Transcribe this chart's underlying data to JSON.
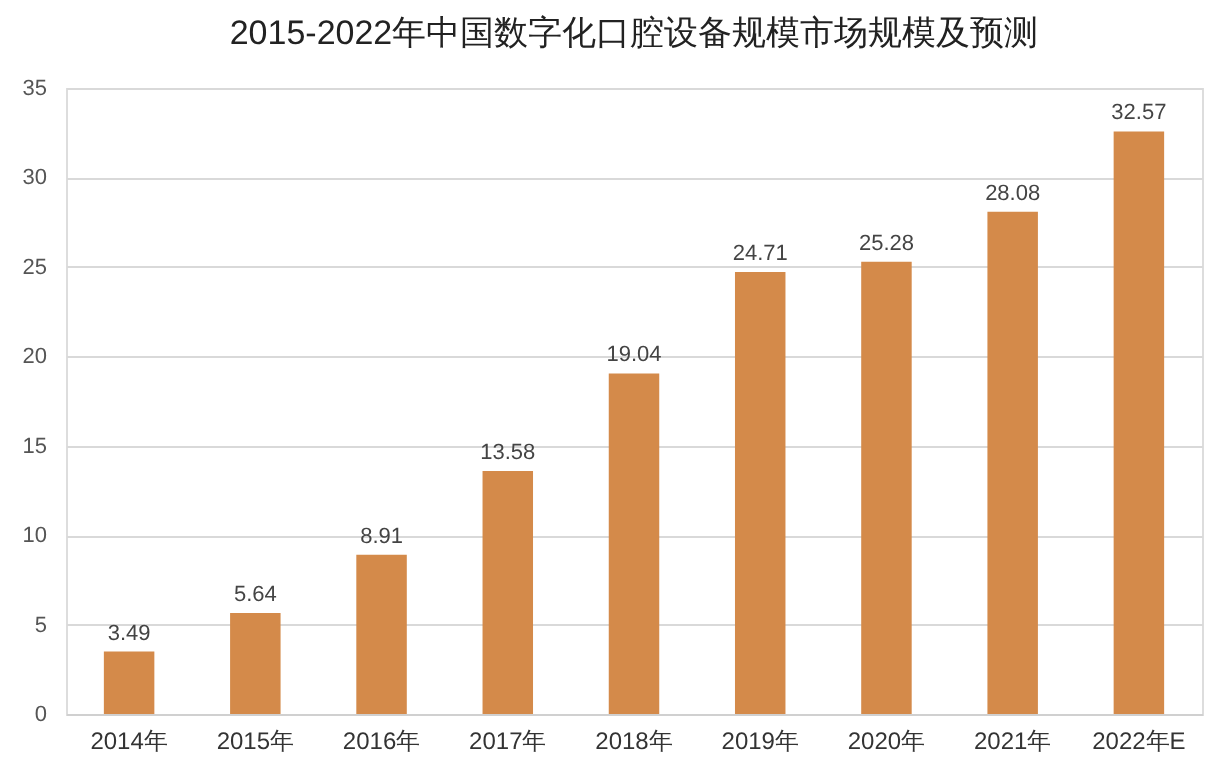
{
  "chart_data": {
    "type": "bar",
    "title": "2015-2022年中国数字化口腔设备规模市场规模及预测",
    "categories": [
      "2014年",
      "2015年",
      "2016年",
      "2017年",
      "2018年",
      "2019年",
      "2020年",
      "2021年",
      "2022年E"
    ],
    "values": [
      3.49,
      5.64,
      8.91,
      13.58,
      19.04,
      24.71,
      25.28,
      28.08,
      32.57
    ],
    "color": "#d48a4a",
    "ylim": [
      0,
      35
    ],
    "yticks": [
      0,
      5,
      10,
      15,
      20,
      25,
      30,
      35
    ],
    "grid": "y",
    "data_labels": true
  }
}
